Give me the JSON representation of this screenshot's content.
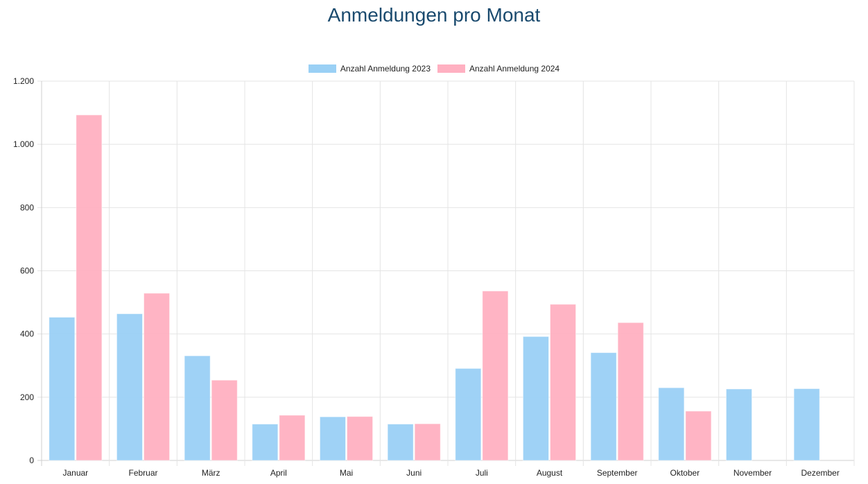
{
  "chart_data": {
    "type": "bar",
    "title": "Anmeldungen pro Monat",
    "xlabel": "",
    "ylabel": "",
    "ylim": [
      0,
      1200
    ],
    "yticks": [
      0,
      200,
      400,
      600,
      800,
      1000,
      1200
    ],
    "ytick_labels": [
      "0",
      "200",
      "400",
      "600",
      "800",
      "1.000",
      "1.200"
    ],
    "grid": true,
    "legend_position": "top-center",
    "categories": [
      "Januar",
      "Februar",
      "März",
      "April",
      "Mai",
      "Juni",
      "Juli",
      "August",
      "September",
      "Oktober",
      "November",
      "Dezember"
    ],
    "series": [
      {
        "name": "Anzahl Anmeldung 2023",
        "color": "#9ad0f5",
        "values": [
          453,
          464,
          331,
          115,
          138,
          115,
          291,
          392,
          341,
          230,
          226,
          227
        ]
      },
      {
        "name": "Anzahl Anmeldung 2024",
        "color": "#ffb0c1",
        "values": [
          1093,
          529,
          254,
          143,
          139,
          116,
          536,
          494,
          436,
          156,
          null,
          null
        ]
      }
    ]
  }
}
